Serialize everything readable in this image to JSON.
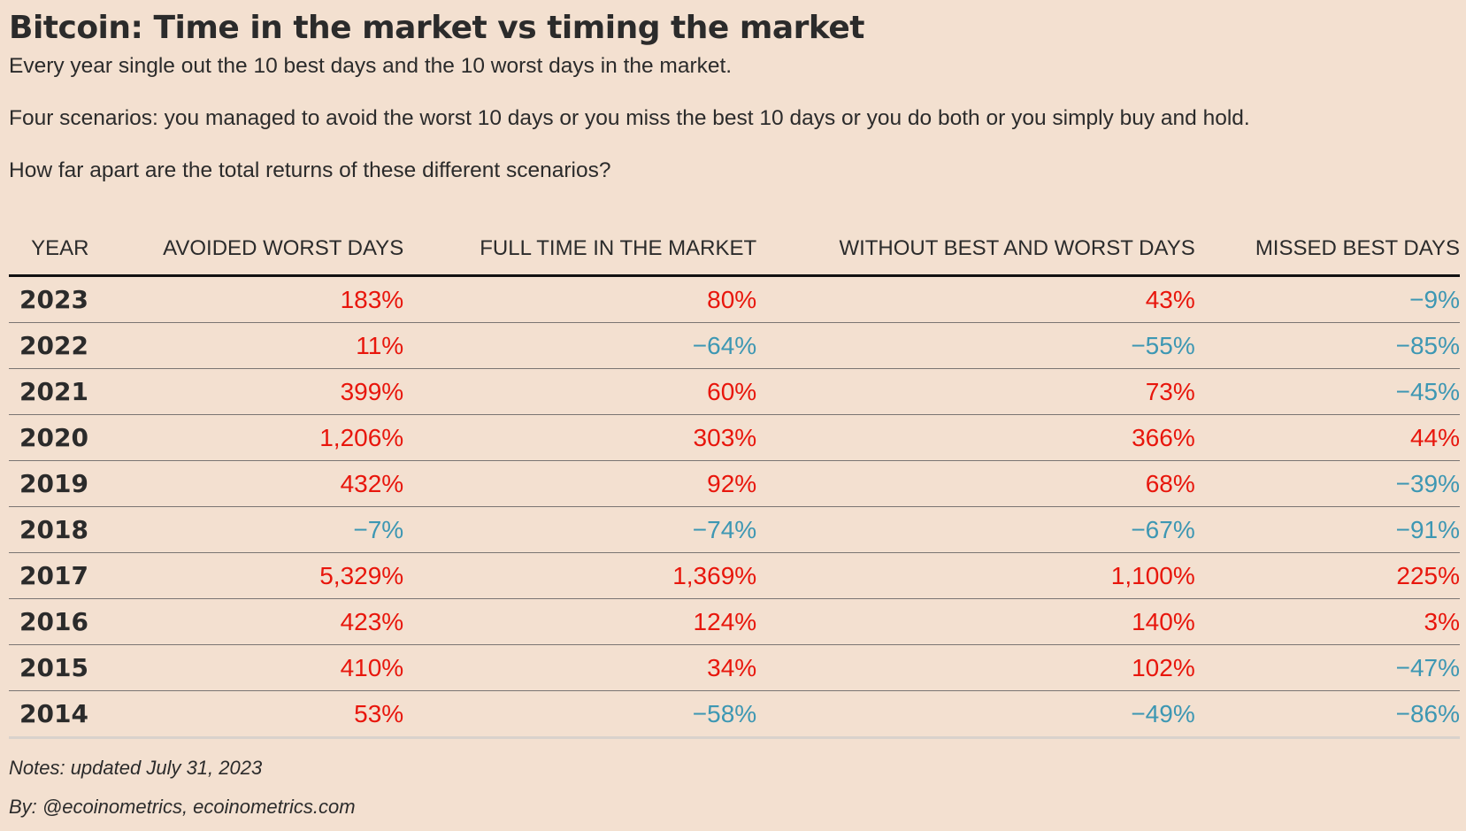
{
  "title": "Bitcoin: Time in the market vs timing the market",
  "subtitle": {
    "line1": "Every year single out the 10 best days and the 10 worst days in the market.",
    "line2": "Four scenarios: you managed to avoid the worst 10 days or you miss the best 10 days or you do both or you simply buy and hold.",
    "line3": "How far apart are the total returns of these different scenarios?"
  },
  "colors": {
    "background": "#f3e0d0",
    "positive": "#e8160c",
    "negative": "#3d97b3",
    "text": "#2b2b2b"
  },
  "chart_data": {
    "type": "table",
    "columns": [
      "YEAR",
      "AVOIDED WORST DAYS",
      "FULL TIME IN THE MARKET",
      "WITHOUT BEST AND WORST DAYS",
      "MISSED BEST DAYS"
    ],
    "rows": [
      {
        "year": "2023",
        "avoided_worst": "183%",
        "full_time": "80%",
        "without_best_worst": "43%",
        "missed_best": "−9%"
      },
      {
        "year": "2022",
        "avoided_worst": "11%",
        "full_time": "−64%",
        "without_best_worst": "−55%",
        "missed_best": "−85%"
      },
      {
        "year": "2021",
        "avoided_worst": "399%",
        "full_time": "60%",
        "without_best_worst": "73%",
        "missed_best": "−45%"
      },
      {
        "year": "2020",
        "avoided_worst": "1,206%",
        "full_time": "303%",
        "without_best_worst": "366%",
        "missed_best": "44%"
      },
      {
        "year": "2019",
        "avoided_worst": "432%",
        "full_time": "92%",
        "without_best_worst": "68%",
        "missed_best": "−39%"
      },
      {
        "year": "2018",
        "avoided_worst": "−7%",
        "full_time": "−74%",
        "without_best_worst": "−67%",
        "missed_best": "−91%"
      },
      {
        "year": "2017",
        "avoided_worst": "5,329%",
        "full_time": "1,369%",
        "without_best_worst": "1,100%",
        "missed_best": "225%"
      },
      {
        "year": "2016",
        "avoided_worst": "423%",
        "full_time": "124%",
        "without_best_worst": "140%",
        "missed_best": "3%"
      },
      {
        "year": "2015",
        "avoided_worst": "410%",
        "full_time": "34%",
        "without_best_worst": "102%",
        "missed_best": "−47%"
      },
      {
        "year": "2014",
        "avoided_worst": "53%",
        "full_time": "−58%",
        "without_best_worst": "−49%",
        "missed_best": "−86%"
      }
    ]
  },
  "footer": {
    "notes": "Notes: updated July 31, 2023",
    "byline": "By: @ecoinometrics, ecoinometrics.com"
  }
}
